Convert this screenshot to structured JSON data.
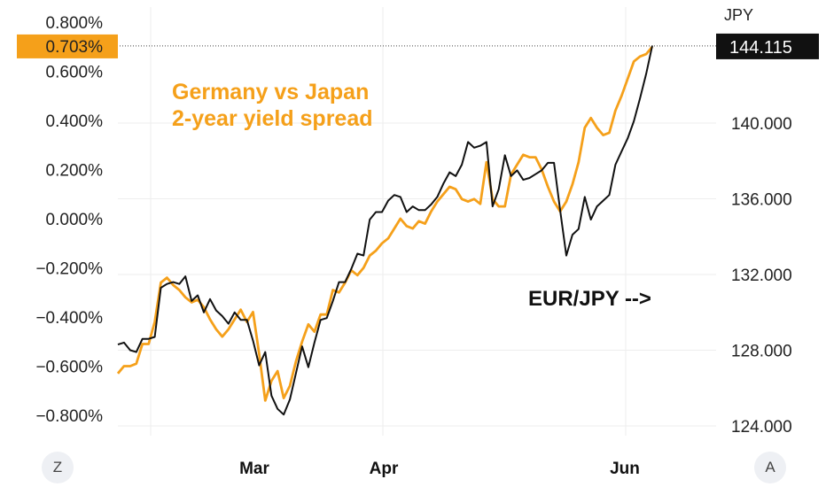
{
  "chart_data": {
    "type": "line",
    "title": "Germany vs Japan\n2-year yield spread",
    "annotation": "EUR/JPY -->",
    "left_axis": {
      "ticks": [
        "0.800%",
        "0.600%",
        "0.400%",
        "0.200%",
        "0.000%",
        "−0.200%",
        "−0.400%",
        "−0.600%",
        "−0.800%"
      ],
      "tick_values": [
        0.8,
        0.6,
        0.4,
        0.2,
        0.0,
        -0.2,
        -0.4,
        -0.6,
        -0.8
      ],
      "current_label": "0.703%",
      "current_value": 0.703
    },
    "right_axis": {
      "unit": "JPY",
      "ticks": [
        "140.000",
        "136.000",
        "132.000",
        "128.000",
        "124.000"
      ],
      "tick_values": [
        140,
        136,
        132,
        128,
        124
      ],
      "current_label": "144.115",
      "current_value": 144.115
    },
    "x_ticks": [
      "Mar",
      "Apr",
      "Jun"
    ],
    "corner_buttons": [
      "Z",
      "A"
    ],
    "series": [
      {
        "name": "Germany vs Japan 2-year yield spread",
        "color": "#f5a01a",
        "axis": "left",
        "values": [
          -0.63,
          -0.6,
          -0.6,
          -0.59,
          -0.51,
          -0.51,
          -0.42,
          -0.26,
          -0.24,
          -0.27,
          -0.29,
          -0.32,
          -0.34,
          -0.33,
          -0.36,
          -0.41,
          -0.45,
          -0.48,
          -0.45,
          -0.41,
          -0.37,
          -0.42,
          -0.38,
          -0.55,
          -0.74,
          -0.66,
          -0.62,
          -0.73,
          -0.68,
          -0.58,
          -0.5,
          -0.43,
          -0.46,
          -0.39,
          -0.39,
          -0.29,
          -0.3,
          -0.26,
          -0.21,
          -0.23,
          -0.2,
          -0.15,
          -0.13,
          -0.1,
          -0.08,
          -0.04,
          0.0,
          -0.03,
          -0.04,
          -0.01,
          -0.02,
          0.03,
          0.07,
          0.1,
          0.13,
          0.12,
          0.08,
          0.07,
          0.08,
          0.06,
          0.23,
          0.08,
          0.05,
          0.05,
          0.18,
          0.22,
          0.26,
          0.25,
          0.25,
          0.2,
          0.13,
          0.07,
          0.03,
          0.07,
          0.14,
          0.23,
          0.37,
          0.41,
          0.37,
          0.34,
          0.35,
          0.44,
          0.5,
          0.57,
          0.64,
          0.66,
          0.67,
          0.7
        ]
      },
      {
        "name": "EUR/JPY",
        "color": "#111111",
        "axis": "right",
        "values": [
          128.3,
          128.4,
          128.0,
          127.9,
          128.6,
          128.6,
          128.7,
          131.3,
          131.5,
          131.6,
          131.5,
          131.9,
          130.6,
          130.9,
          130.0,
          130.7,
          130.1,
          129.8,
          129.4,
          130.0,
          129.6,
          129.6,
          128.5,
          127.2,
          127.9,
          125.6,
          124.9,
          124.6,
          125.4,
          126.8,
          128.2,
          127.1,
          128.4,
          129.6,
          129.7,
          130.6,
          131.6,
          131.6,
          132.3,
          133.1,
          133.0,
          134.9,
          135.3,
          135.3,
          135.9,
          136.2,
          136.1,
          135.3,
          135.6,
          135.4,
          135.4,
          135.7,
          136.1,
          136.8,
          137.4,
          137.2,
          137.8,
          139.0,
          138.7,
          138.8,
          139.0,
          135.6,
          136.5,
          138.3,
          137.2,
          137.5,
          137.0,
          137.1,
          137.3,
          137.5,
          137.9,
          137.9,
          135.4,
          133.0,
          134.1,
          134.4,
          136.1,
          134.9,
          135.6,
          135.9,
          136.2,
          137.8,
          138.5,
          139.2,
          140.1,
          141.3,
          142.6,
          144.1
        ]
      }
    ]
  }
}
